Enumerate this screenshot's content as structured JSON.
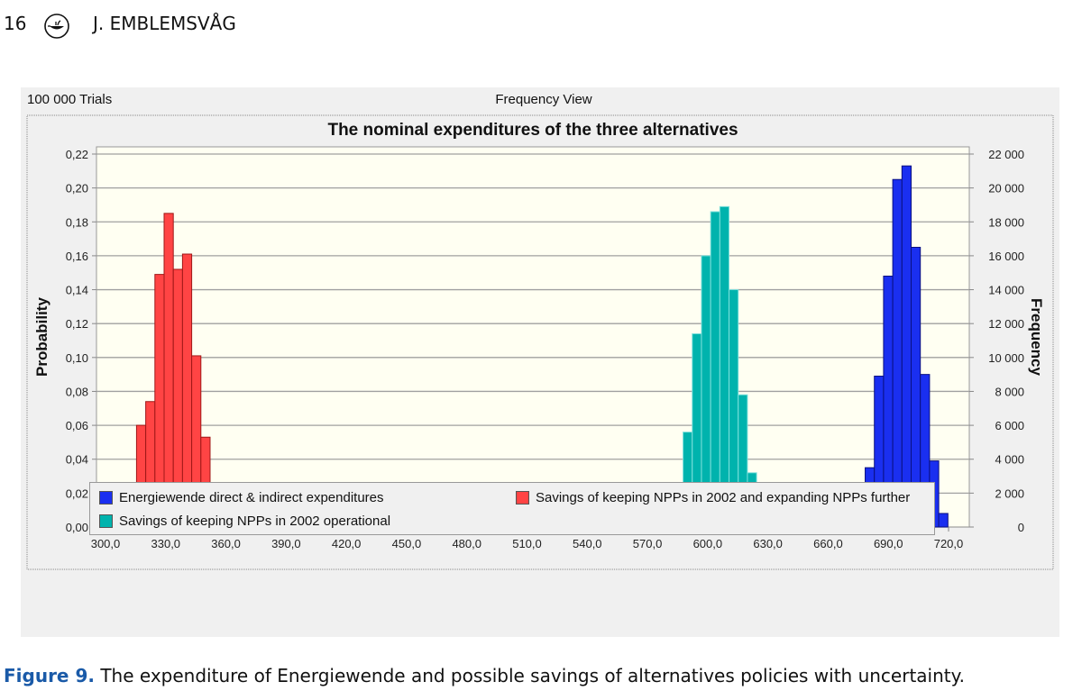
{
  "header": {
    "page_number": "16",
    "author": "J. EMBLEMSVÅG",
    "logo_icon": "oil-lamp-icon"
  },
  "panel": {
    "trials_label": "100 000 Trials",
    "view_label": "Frequency View"
  },
  "caption": {
    "label": "Figure 9.",
    "text": " The expenditure of Energiewende and possible savings of alternatives policies with uncertainty."
  },
  "chart_data": {
    "type": "bar",
    "title": "The nominal expenditures of the three alternatives",
    "ylabel": "Probability",
    "ylabel_right": "Frequency",
    "xlim": [
      300,
      720
    ],
    "ylim": [
      0,
      0.22
    ],
    "ylim_right": [
      0,
      22000
    ],
    "x_ticks": [
      "300,0",
      "330,0",
      "360,0",
      "390,0",
      "420,0",
      "450,0",
      "480,0",
      "510,0",
      "540,0",
      "570,0",
      "600,0",
      "630,0",
      "660,0",
      "690,0",
      "720,0"
    ],
    "y_ticks": [
      "0,00",
      "0,02",
      "0,04",
      "0,06",
      "0,08",
      "0,10",
      "0,12",
      "0,14",
      "0,16",
      "0,18",
      "0,20",
      "0,22"
    ],
    "y_ticks_right": [
      "0",
      "2 000",
      "4 000",
      "6 000",
      "8 000",
      "10 000",
      "12 000",
      "14 000",
      "16 000",
      "18 000",
      "20 000",
      "22 000"
    ],
    "grid": true,
    "legend_position": "bottom",
    "bin_width": 4.58,
    "series": [
      {
        "name": "Savings of keeping NPPs in 2002 and expanding NPPs further",
        "color": "#ff4444",
        "edge": "#a01818",
        "bin_start": 306.3,
        "values": [
          0.005,
          0.02,
          0.06,
          0.074,
          0.149,
          0.185,
          0.152,
          0.161,
          0.101,
          0.053,
          0.025,
          0.008,
          0.003,
          0.0005
        ]
      },
      {
        "name": "Savings of keeping NPPs in 2002 operational",
        "color": "#00b3ad",
        "edge": "#7fe0dc",
        "bin_start": 574.0,
        "values": [
          0.0005,
          0.0065,
          0.021,
          0.056,
          0.114,
          0.16,
          0.186,
          0.189,
          0.14,
          0.078,
          0.032,
          0.011,
          0.004
        ]
      },
      {
        "name": "Energiewende direct & indirect expenditures",
        "color": "#1a2ff0",
        "edge": "#0a1080",
        "bin_start": 669.3,
        "values": [
          0.0005,
          0.007,
          0.035,
          0.089,
          0.148,
          0.205,
          0.213,
          0.165,
          0.09,
          0.039,
          0.008
        ]
      }
    ]
  }
}
